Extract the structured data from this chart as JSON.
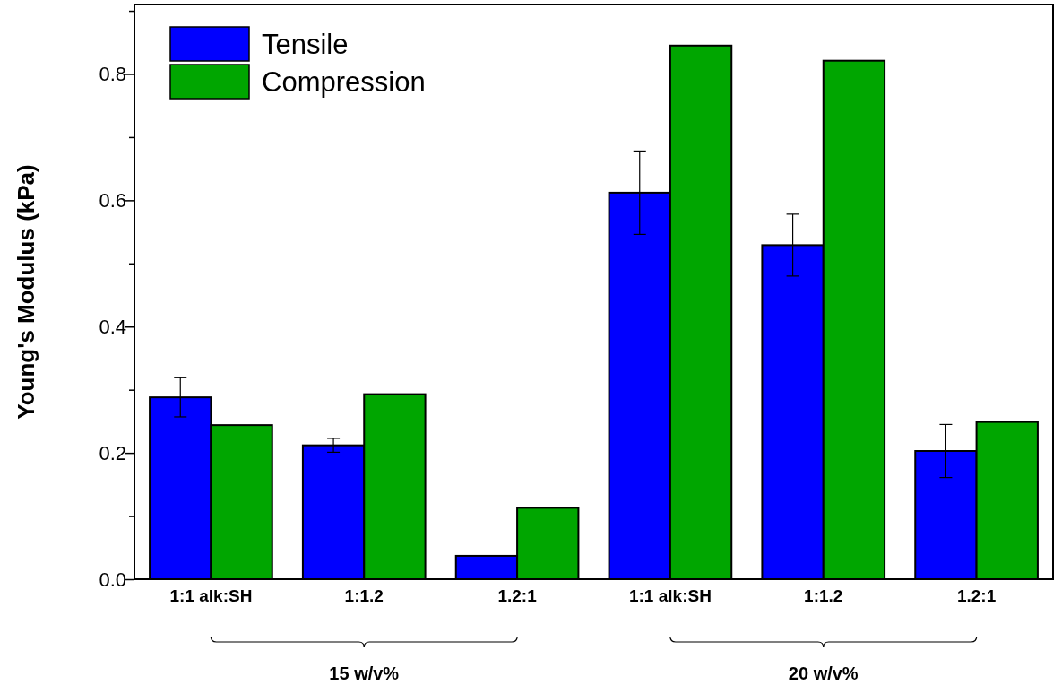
{
  "chart_data": {
    "type": "bar",
    "ylabel": "Young's Modulus (kPa)",
    "categories": [
      "1:1 alk:SH",
      "1:1.2",
      "1.2:1",
      "1:1 alk:SH",
      "1:1.2",
      "1.2:1"
    ],
    "series": [
      {
        "name": "Tensile",
        "color": "#0000ff",
        "values": [
          0.288,
          0.212,
          0.037,
          0.612,
          0.529,
          0.203
        ],
        "errors": [
          0.031,
          0.011,
          null,
          0.066,
          0.049,
          0.042
        ]
      },
      {
        "name": "Compression",
        "color": "#00a600",
        "values": [
          0.244,
          0.293,
          0.113,
          0.845,
          0.821,
          0.249
        ]
      }
    ],
    "ylim": [
      0,
      0.91
    ],
    "yticks": [
      {
        "value": 0,
        "label": "0.0"
      },
      {
        "value": 0.1,
        "label": null
      },
      0.2,
      {
        "value": 0.3,
        "label": null
      },
      0.4,
      {
        "value": 0.5,
        "label": null
      },
      0.6,
      {
        "value": 0.7,
        "label": null
      },
      0.8,
      {
        "value": 0.9,
        "label": null
      }
    ],
    "annotations": [
      "15 w/v%",
      "20 w/v%"
    ],
    "legend": "top left",
    "grid": false
  }
}
